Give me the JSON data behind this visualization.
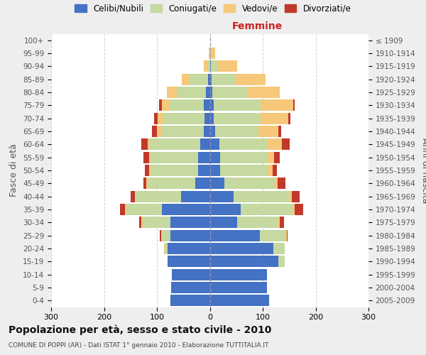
{
  "age_groups": [
    "0-4",
    "5-9",
    "10-14",
    "15-19",
    "20-24",
    "25-29",
    "30-34",
    "35-39",
    "40-44",
    "45-49",
    "50-54",
    "55-59",
    "60-64",
    "65-69",
    "70-74",
    "75-79",
    "80-84",
    "85-89",
    "90-94",
    "95-99",
    "100+"
  ],
  "birth_years": [
    "2005-2009",
    "2000-2004",
    "1995-1999",
    "1990-1994",
    "1985-1989",
    "1980-1984",
    "1975-1979",
    "1970-1974",
    "1965-1969",
    "1960-1964",
    "1955-1959",
    "1950-1954",
    "1945-1949",
    "1940-1944",
    "1935-1939",
    "1930-1934",
    "1925-1929",
    "1920-1924",
    "1915-1919",
    "1910-1914",
    "≤ 1909"
  ],
  "maschi": {
    "celibi": [
      75,
      73,
      72,
      80,
      80,
      75,
      75,
      90,
      55,
      28,
      22,
      22,
      18,
      12,
      10,
      12,
      8,
      3,
      0,
      0,
      0
    ],
    "coniugati": [
      0,
      0,
      0,
      0,
      5,
      15,
      52,
      68,
      85,
      90,
      90,
      90,
      95,
      80,
      78,
      65,
      55,
      35,
      3,
      0,
      0
    ],
    "vedovi": [
      0,
      0,
      0,
      0,
      2,
      2,
      2,
      2,
      2,
      2,
      3,
      3,
      5,
      8,
      10,
      14,
      18,
      15,
      8,
      2,
      0
    ],
    "divorziati": [
      0,
      0,
      0,
      0,
      0,
      2,
      5,
      10,
      8,
      5,
      8,
      10,
      12,
      10,
      8,
      5,
      0,
      0,
      0,
      0,
      0
    ]
  },
  "femmine": {
    "nubili": [
      112,
      108,
      108,
      130,
      120,
      95,
      52,
      58,
      45,
      28,
      20,
      20,
      18,
      10,
      8,
      8,
      5,
      3,
      2,
      0,
      0
    ],
    "coniugate": [
      0,
      0,
      0,
      12,
      22,
      48,
      78,
      98,
      105,
      95,
      90,
      88,
      90,
      82,
      88,
      88,
      65,
      45,
      12,
      2,
      0
    ],
    "vedove": [
      0,
      0,
      0,
      0,
      0,
      2,
      2,
      5,
      5,
      5,
      9,
      14,
      28,
      38,
      52,
      62,
      62,
      58,
      38,
      8,
      0
    ],
    "divorziate": [
      0,
      0,
      0,
      0,
      0,
      2,
      8,
      15,
      15,
      15,
      8,
      10,
      15,
      5,
      5,
      2,
      0,
      0,
      0,
      0,
      0
    ]
  },
  "colors": {
    "celibi": "#4472C4",
    "coniugati": "#c5d9a0",
    "vedovi": "#f5c87a",
    "divorziati": "#c0392b"
  },
  "xlim": 300,
  "title": "Popolazione per età, sesso e stato civile - 2010",
  "subtitle": "COMUNE DI POPPI (AR) - Dati ISTAT 1° gennaio 2010 - Elaborazione TUTTITALIA.IT",
  "ylabel_left": "Fasce di età",
  "ylabel_right": "Anni di nascita",
  "legend_labels": [
    "Celibi/Nubili",
    "Coniugati/e",
    "Vedovi/e",
    "Divorziati/e"
  ],
  "bg_color": "#eeeeee",
  "plot_bg": "#ffffff",
  "grid_color": "#cccccc",
  "maschi_label_color": "#444444",
  "femmine_label_color": "#cc2222"
}
